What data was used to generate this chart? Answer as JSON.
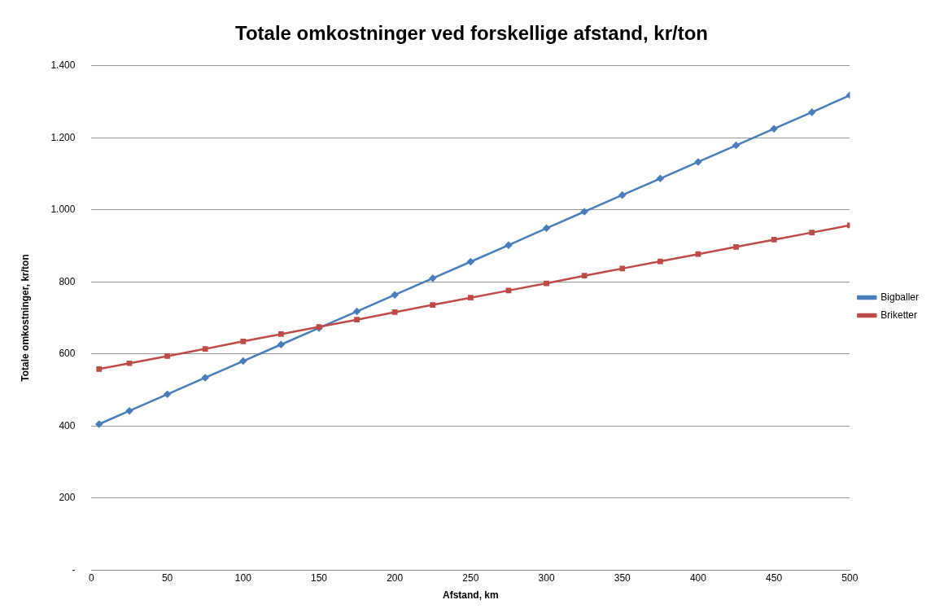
{
  "chart_data": {
    "type": "line",
    "title": "Totale omkostninger ved forskellige afstand, kr/ton",
    "xlabel": "Afstand, km",
    "ylabel": "Totale omkostninger, kr/ton",
    "x": [
      5,
      25,
      50,
      75,
      100,
      125,
      150,
      175,
      200,
      225,
      250,
      275,
      300,
      325,
      350,
      375,
      400,
      425,
      450,
      475,
      500
    ],
    "series": [
      {
        "name": "Bigballer",
        "color": "#4a7ebb",
        "marker": "diamond",
        "values": [
          405,
          442,
          488,
          534,
          580,
          626,
          672,
          718,
          764,
          810,
          856,
          902,
          949,
          995,
          1041,
          1087,
          1133,
          1179,
          1225,
          1271,
          1318
        ]
      },
      {
        "name": "Briketter",
        "color": "#be4b48",
        "marker": "square",
        "values": [
          558,
          574,
          594,
          614,
          635,
          655,
          675,
          695,
          716,
          736,
          756,
          776,
          796,
          817,
          837,
          857,
          877,
          897,
          917,
          937,
          957
        ]
      }
    ],
    "xlim": [
      0,
      500
    ],
    "xticks": [
      0,
      50,
      100,
      150,
      200,
      250,
      300,
      350,
      400,
      450,
      500
    ],
    "ylim": [
      0,
      1400
    ],
    "yticks": [
      {
        "value": 0,
        "label": "-"
      },
      200,
      400,
      600,
      800,
      {
        "value": 1000,
        "label": "1.000"
      },
      {
        "value": 1200,
        "label": "1.200"
      },
      {
        "value": 1400,
        "label": "1.400"
      }
    ],
    "grid": "y",
    "legend": "right",
    "line_style": "solid"
  }
}
